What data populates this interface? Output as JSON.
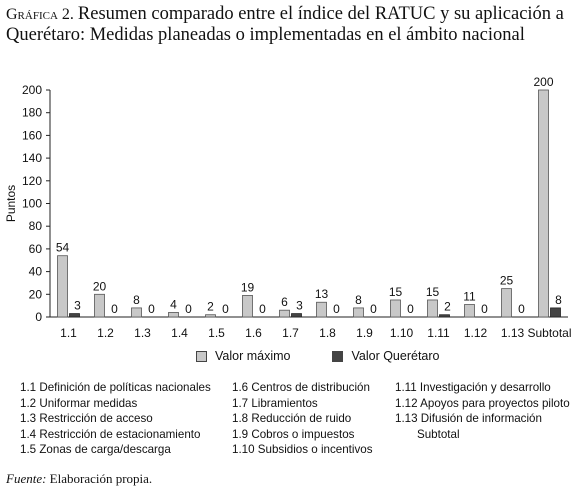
{
  "title": {
    "prefix": "Gráfica 2.",
    "text": "Resumen comparado entre el índice del RATUC y su aplicación a Querétaro: Medidas planeadas o implementadas en el ámbito nacional"
  },
  "chart_data": {
    "type": "bar",
    "categories": [
      "1.1",
      "1.2",
      "1.3",
      "1.4",
      "1.5",
      "1.6",
      "1.7",
      "1.8",
      "1.9",
      "1.10",
      "1.11",
      "1.12",
      "1.13",
      "Subtotal"
    ],
    "series": [
      {
        "name": "Valor máximo",
        "color": "#c8c8c8",
        "values": [
          54,
          20,
          8,
          4,
          2,
          19,
          6,
          13,
          8,
          15,
          15,
          11,
          25,
          200
        ],
        "labels": [
          "54",
          "20",
          "8",
          "4",
          "2",
          "19",
          "6",
          "13",
          "8",
          "15",
          "15",
          "11",
          "25",
          "200"
        ]
      },
      {
        "name": "Valor Querétaro",
        "color": "#444444",
        "values": [
          3,
          0,
          0,
          0,
          0,
          0,
          3,
          0,
          0,
          0,
          2,
          0,
          0,
          8
        ],
        "labels": [
          "3",
          "0",
          "0",
          "0",
          "0",
          "0",
          "3",
          "0",
          "0",
          "0",
          "2",
          "0",
          "0",
          "8"
        ]
      }
    ],
    "ylabel": "Puntos",
    "ylim": [
      0,
      200
    ],
    "yticks": [
      0,
      20,
      40,
      60,
      80,
      100,
      120,
      140,
      160,
      180,
      200
    ],
    "legend_position": "bottom"
  },
  "notes": {
    "col1": [
      "1.1 Definición de políticas nacionales",
      "1.2 Uniformar medidas",
      "1.3 Restricción de acceso",
      "1.4 Restricción de estacionamiento",
      "1.5 Zonas de carga/descarga"
    ],
    "col2": [
      "1.6 Centros de distribución",
      "1.7 Libramientos",
      "1.8 Reducción de ruido",
      "1.9 Cobros o impuestos",
      "1.10 Subsidios o incentivos"
    ],
    "col3": [
      "1.11 Investigación y desarrollo",
      "1.12 Apoyos para proyectos piloto",
      "1.13 Difusión de información",
      "Subtotal"
    ]
  },
  "source": {
    "label": "Fuente:",
    "text": "Elaboración propia."
  }
}
